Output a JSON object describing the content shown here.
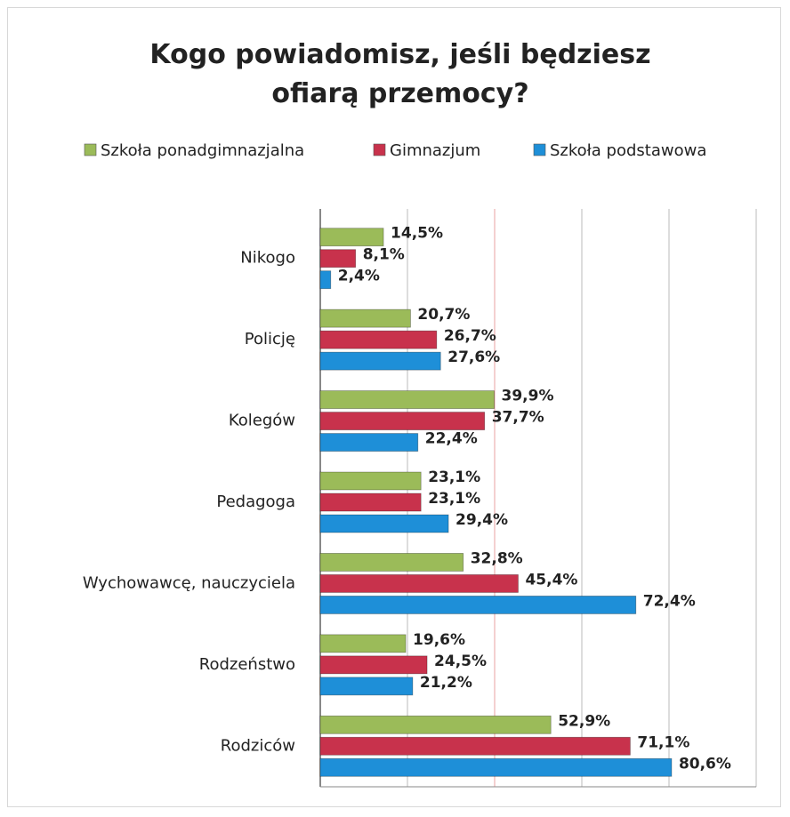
{
  "chart_data": {
    "type": "hbar",
    "title": "Kogo powiadomisz, jeśli będziesz ofiarą przemocy?",
    "categories": [
      "Nikogo",
      "Policję",
      "Kolegów",
      "Pedagoga",
      "Wychowawcę, nauczyciela",
      "Rodzeństwo",
      "Rodziców"
    ],
    "series": [
      {
        "name": "Szkoła ponadgimnazjalna",
        "color": "#9bbb59",
        "values": [
          14.5,
          20.7,
          39.9,
          23.1,
          32.8,
          19.6,
          52.9
        ],
        "value_labels": [
          "14,5%",
          "20,7%",
          "39,9%",
          "23,1%",
          "32,8%",
          "19,6%",
          "52,9%"
        ]
      },
      {
        "name": "Gimnazjum",
        "color": "#c8324c",
        "values": [
          8.1,
          26.7,
          37.7,
          23.1,
          45.4,
          24.5,
          71.1
        ],
        "value_labels": [
          "8,1%",
          "26,7%",
          "37,7%",
          "23,1%",
          "45,4%",
          "24,5%",
          "71,1%"
        ]
      },
      {
        "name": "Szkoła podstawowa",
        "color": "#1e8fd8",
        "values": [
          2.4,
          27.6,
          22.4,
          29.4,
          72.4,
          21.2,
          80.6
        ],
        "value_labels": [
          "2,4%",
          "27,6%",
          "22,4%",
          "29,4%",
          "72,4%",
          "21,2%",
          "80,6%"
        ]
      }
    ],
    "xlim": [
      0,
      100
    ],
    "xticks": [
      0,
      20,
      40,
      60,
      80,
      100
    ],
    "grid": true
  }
}
